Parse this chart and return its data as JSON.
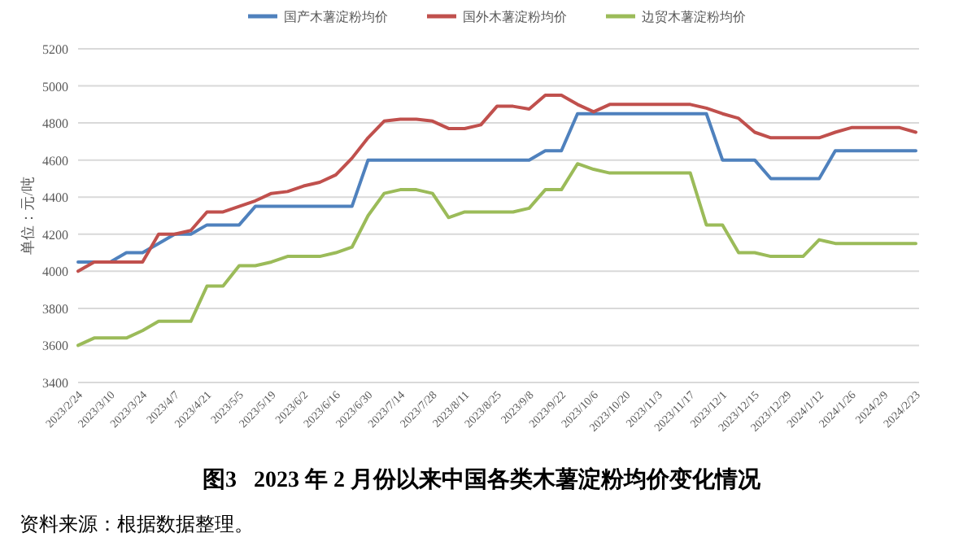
{
  "chart_data": {
    "type": "line",
    "title": "图3   2023 年 2 月份以来中国各类木薯淀粉均价变化情况",
    "ylabel": "单位：元/吨",
    "categories": [
      "2023/2/24",
      null,
      "2023/3/10",
      null,
      "2023/3/24",
      null,
      "2023/4/7",
      null,
      "2023/4/21",
      null,
      "2023/5/5",
      null,
      "2023/5/19",
      null,
      "2023/6/2",
      null,
      "2023/6/16",
      null,
      "2023/6/30",
      null,
      "2023/7/14",
      null,
      "2023/7/28",
      null,
      "2023/8/11",
      null,
      "2023/8/25",
      null,
      "2023/9/8",
      null,
      "2023/9/22",
      null,
      "2023/10/6",
      null,
      "2023/10/20",
      null,
      "2023/11/3",
      null,
      "2023/11/17",
      null,
      "2023/12/1",
      null,
      "2023/12/15",
      null,
      "2023/12/29",
      null,
      "2024/1/12",
      null,
      "2024/1/26",
      null,
      "2024/2/9",
      null,
      "2024/2/23"
    ],
    "series": [
      {
        "name": "国产木薯淀粉均价",
        "color": "#4f81bd",
        "values": [
          4050,
          4050,
          4050,
          4100,
          4100,
          4150,
          4200,
          4200,
          4250,
          4250,
          4250,
          4350,
          4350,
          4350,
          4350,
          4350,
          4350,
          4350,
          4600,
          4600,
          4600,
          4600,
          4600,
          4600,
          4600,
          4600,
          4600,
          4600,
          4600,
          4650,
          4650,
          4850,
          4850,
          4850,
          4850,
          4850,
          4850,
          4850,
          4850,
          4850,
          4600,
          4600,
          4600,
          4500,
          4500,
          4500,
          4500,
          4650,
          4650,
          4650,
          4650,
          4650,
          4650
        ]
      },
      {
        "name": "国外木薯淀粉均价",
        "color": "#c0504d",
        "values": [
          4000,
          4050,
          4050,
          4050,
          4050,
          4200,
          4200,
          4220,
          4320,
          4320,
          4350,
          4380,
          4420,
          4430,
          4460,
          4480,
          4520,
          4610,
          4720,
          4810,
          4820,
          4820,
          4810,
          4770,
          4770,
          4790,
          4890,
          4890,
          4875,
          4950,
          4950,
          4900,
          4860,
          4900,
          4900,
          4900,
          4900,
          4900,
          4900,
          4880,
          4850,
          4825,
          4750,
          4720,
          4720,
          4720,
          4720,
          4750,
          4775,
          4775,
          4775,
          4775,
          4750
        ]
      },
      {
        "name": "边贸木薯淀粉均价",
        "color": "#9bbb59",
        "values": [
          3600,
          3640,
          3640,
          3640,
          3680,
          3730,
          3730,
          3730,
          3920,
          3920,
          4030,
          4030,
          4050,
          4080,
          4080,
          4080,
          4100,
          4130,
          4300,
          4420,
          4440,
          4440,
          4420,
          4290,
          4320,
          4320,
          4320,
          4320,
          4340,
          4440,
          4440,
          4580,
          4550,
          4530,
          4530,
          4530,
          4530,
          4530,
          4530,
          4250,
          4250,
          4100,
          4100,
          4080,
          4080,
          4080,
          4170,
          4150,
          4150,
          4150,
          4150,
          4150,
          4150
        ]
      }
    ],
    "ylim": [
      3400,
      5200
    ],
    "yticks": [
      3400,
      3600,
      3800,
      4000,
      4200,
      4400,
      4600,
      4800,
      5000,
      5200
    ],
    "grid": "y",
    "legend": "top",
    "annotations": [
      "资料来源：根据数据整理。"
    ]
  }
}
